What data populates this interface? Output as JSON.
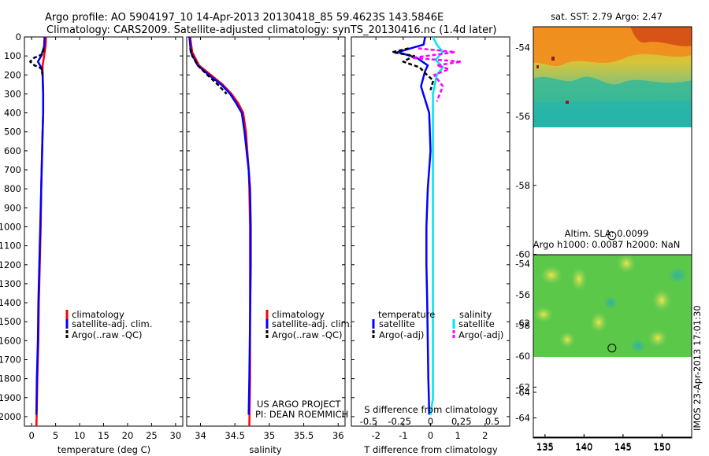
{
  "header": {
    "line1": "Argo profile: AO 5904197_10 14-Apr-2013 20130418_85 59.4623S 143.5846E",
    "line2": "Climatology: CARS2009. Satellite-adjusted climatology: synTS_20130416.nc (1.4d later)"
  },
  "colors": {
    "climatology": "#ff0000",
    "satellite": "#0000ff",
    "argo": "#000000",
    "salinity_satellite": "#00e5ee",
    "salinity_argo": "#ff00ff"
  },
  "watermark": "IMOS 23-Apr-2013 17:01:30",
  "credit": {
    "line1": "US ARGO PROJECT",
    "line2": "PI: DEAN ROEMMICH"
  },
  "map_top": {
    "title": "sat. SST: 2.79 Argo: 2.47"
  },
  "map_bottom": {
    "title1": "Altim. SLA: 0.0099",
    "title2": "Argo h1000: 0.0087 h2000: NaN"
  },
  "chart_data": [
    {
      "type": "line",
      "panel": "temperature",
      "xlabel": "temperature (deg C)",
      "xlim": [
        -1.5,
        31.5
      ],
      "xticks": [
        0,
        5,
        10,
        15,
        20,
        25,
        30
      ],
      "ylim": [
        2050,
        0
      ],
      "yticks": [
        0,
        100,
        200,
        300,
        400,
        500,
        600,
        700,
        800,
        900,
        1000,
        1100,
        1200,
        1300,
        1400,
        1500,
        1600,
        1700,
        1800,
        1900,
        2000
      ],
      "legend": [
        "climatology",
        "satellite-adj. clim.",
        "Argo(..raw -QC)"
      ],
      "series": [
        {
          "name": "climatology",
          "x": [
            3.0,
            2.9,
            2.6,
            2.3,
            2.3,
            2.4,
            2.4,
            2.3,
            2.2,
            2.1,
            2.0,
            1.9,
            1.7,
            1.5,
            1.4,
            1.2,
            1.1,
            1.0
          ],
          "y": [
            0,
            50,
            100,
            150,
            200,
            300,
            400,
            500,
            600,
            700,
            800,
            1000,
            1200,
            1400,
            1600,
            1800,
            1950,
            2050
          ]
        },
        {
          "name": "satellite-adj. clim.",
          "x": [
            2.7,
            2.6,
            2.0,
            1.3,
            2.1,
            2.3,
            2.4,
            2.4,
            2.3,
            2.2,
            2.1,
            2.0,
            1.8,
            1.6,
            1.4,
            1.3,
            1.1,
            1.0
          ],
          "y": [
            0,
            50,
            100,
            130,
            165,
            200,
            300,
            400,
            500,
            600,
            700,
            800,
            1000,
            1200,
            1400,
            1600,
            1800,
            1990
          ]
        },
        {
          "name": "Argo(..raw -QC)",
          "x": [
            2.5,
            2.4,
            0.5,
            -0.3,
            0.6,
            2.0,
            2.3
          ],
          "y": [
            60,
            90,
            110,
            130,
            150,
            165,
            200
          ]
        }
      ]
    },
    {
      "type": "line",
      "panel": "salinity",
      "xlabel": "salinity",
      "xlim": [
        33.8,
        36.1
      ],
      "xticks": [
        34,
        34.5,
        35,
        35.5,
        36
      ],
      "ylim": [
        2050,
        0
      ],
      "legend": [
        "climatology",
        "satellite-adj. clim.",
        "Argo(..raw -QC)"
      ],
      "series": [
        {
          "name": "climatology",
          "x": [
            33.85,
            33.88,
            33.98,
            34.15,
            34.32,
            34.45,
            34.55,
            34.62,
            34.66,
            34.68,
            34.7,
            34.71,
            34.72,
            34.72,
            34.72,
            34.72,
            34.71
          ],
          "y": [
            0,
            80,
            150,
            200,
            250,
            300,
            350,
            400,
            500,
            600,
            700,
            800,
            1000,
            1200,
            1500,
            1800,
            2050
          ]
        },
        {
          "name": "satellite-adj. clim.",
          "x": [
            33.84,
            33.86,
            33.96,
            34.12,
            34.3,
            34.43,
            34.52,
            34.6,
            34.64,
            34.67,
            34.7,
            34.72,
            34.73,
            34.73,
            34.72,
            34.71,
            34.7
          ],
          "y": [
            0,
            80,
            150,
            200,
            250,
            300,
            350,
            400,
            500,
            600,
            700,
            800,
            1000,
            1200,
            1500,
            1800,
            1990
          ]
        },
        {
          "name": "Argo(..raw -QC)",
          "x": [
            33.85,
            33.88,
            33.96,
            34.1,
            34.25,
            34.38
          ],
          "y": [
            60,
            100,
            150,
            200,
            250,
            300
          ]
        }
      ]
    },
    {
      "type": "line",
      "panel": "differences",
      "xlabel": "T difference from climatology",
      "xlim": [
        -2.9,
        2.9
      ],
      "xticks": [
        -2,
        -1,
        0,
        1,
        2
      ],
      "x2label": "S difference from climatology",
      "x2ticks": [
        -0.5,
        -0.25,
        0,
        0.25,
        0.5
      ],
      "ylim": [
        2050,
        0
      ],
      "legend_titles": [
        "temperature",
        "salinity"
      ],
      "legend": [
        "satellite",
        "Argo(-adj)",
        "satellite",
        "Argo(-adj)"
      ],
      "series": [
        {
          "name": "satellite",
          "group": "temperature",
          "x": [
            -0.2,
            -0.25,
            -1.2,
            -0.5,
            -0.1,
            -0.2,
            -0.35,
            -0.05,
            0.0,
            -0.1,
            -0.15,
            -0.15,
            -0.12,
            -0.1,
            -0.08,
            -0.06,
            -0.05
          ],
          "y": [
            0,
            40,
            80,
            110,
            150,
            180,
            260,
            400,
            600,
            800,
            1000,
            1200,
            1400,
            1600,
            1800,
            1900,
            1990
          ]
        },
        {
          "name": "Argo(-adj)",
          "group": "temperature",
          "x": [
            -0.8,
            -1.4,
            -0.6,
            -1.0,
            -0.4,
            -0.2,
            0.1,
            0.0
          ],
          "y": [
            60,
            80,
            100,
            130,
            160,
            190,
            230,
            280
          ]
        },
        {
          "name": "satellite",
          "group": "salinity",
          "x": [
            0.02,
            0.05,
            0.1,
            0.04,
            0.1,
            0.05,
            0.02,
            0.02,
            0.02,
            0.02,
            0.02,
            0.02,
            0.0
          ],
          "y": [
            0,
            40,
            80,
            120,
            160,
            200,
            300,
            500,
            800,
            1200,
            1600,
            1900,
            1990
          ]
        },
        {
          "name": "Argo(-adj)",
          "group": "salinity",
          "x": [
            -0.1,
            0.2,
            -0.15,
            0.25,
            0.05,
            0.15,
            0.03,
            0.1,
            0.05
          ],
          "y": [
            60,
            80,
            110,
            130,
            150,
            170,
            200,
            260,
            340
          ]
        }
      ]
    },
    {
      "type": "heatmap",
      "panel": "map_top",
      "title": "sat. SST: 2.79 Argo: 2.47",
      "xlim": [
        133.5,
        153.8
      ],
      "ylim": [
        -65.3,
        -53.4
      ],
      "xticks": [
        135,
        140,
        145,
        150
      ],
      "yticks": [
        -54,
        -56,
        -58,
        -60,
        -62,
        -64
      ],
      "data_extent_lat_min": -60,
      "argo_position": [
        143.58,
        -59.46
      ]
    },
    {
      "type": "heatmap",
      "panel": "map_bottom",
      "xlim": [
        133.5,
        153.8
      ],
      "ylim": [
        -65.3,
        -53.4
      ],
      "xticks": [
        135,
        140,
        145,
        150
      ],
      "yticks": [
        -54,
        -56,
        -58,
        -60,
        -62,
        -64
      ],
      "data_extent_lat_min": -60,
      "argo_position": [
        143.58,
        -59.46
      ]
    }
  ]
}
